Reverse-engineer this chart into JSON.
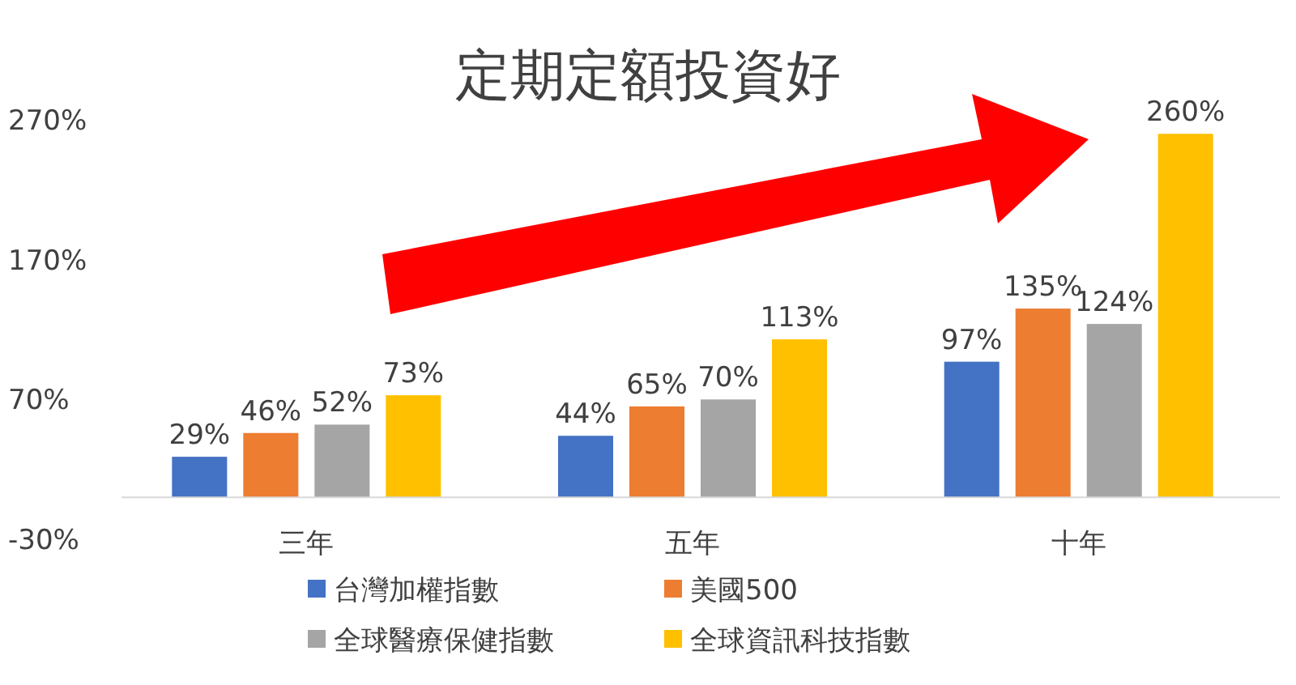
{
  "chart_data": {
    "type": "bar",
    "title": "定期定額投資好",
    "categories": [
      "三年",
      "五年",
      "十年"
    ],
    "series": [
      {
        "name": "台灣加權指數",
        "color": "#4472c4",
        "values": [
          29,
          44,
          97
        ],
        "value_labels": [
          "29%",
          "44%",
          "97%"
        ]
      },
      {
        "name": "美國500",
        "color": "#ed7d31",
        "values": [
          46,
          65,
          135
        ],
        "value_labels": [
          "46%",
          "65%",
          "135%"
        ]
      },
      {
        "name": "全球醫療保健指數",
        "color": "#a5a5a5",
        "values": [
          52,
          70,
          124
        ],
        "value_labels": [
          "52%",
          "70%",
          "124%"
        ]
      },
      {
        "name": "全球資訊科技指數",
        "color": "#ffc000",
        "values": [
          73,
          113,
          260
        ],
        "value_labels": [
          "73%",
          "113%",
          "260%"
        ]
      }
    ],
    "ylim": [
      -30,
      270
    ],
    "yticks": [
      {
        "value": -30,
        "label": "-30%"
      },
      {
        "value": 70,
        "label": "70%"
      },
      {
        "value": 170,
        "label": "170%"
      },
      {
        "value": 270,
        "label": "270%"
      }
    ],
    "grid": false,
    "legend": "bottom"
  }
}
